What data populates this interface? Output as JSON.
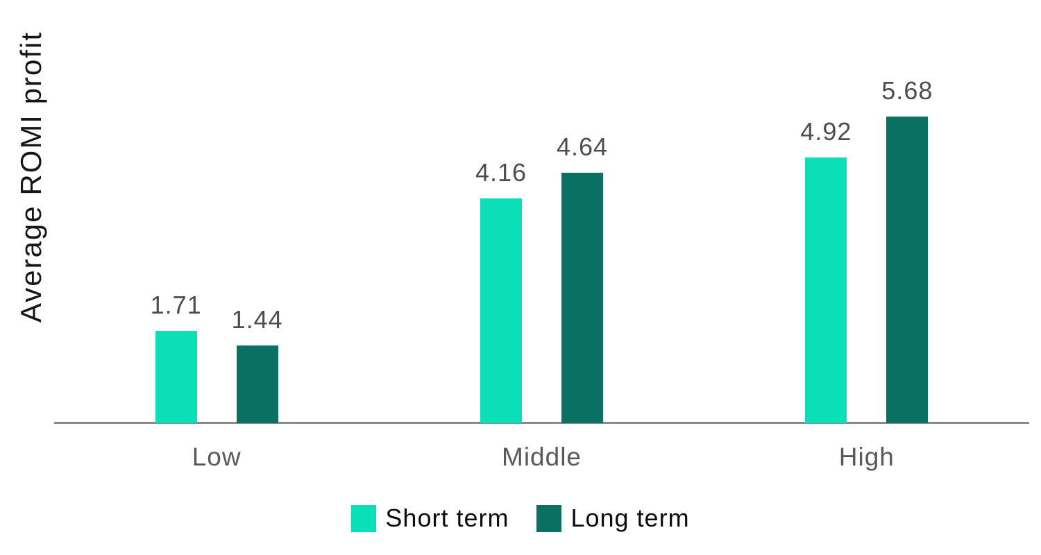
{
  "chart_data": {
    "type": "bar",
    "title": "",
    "ylabel": "Average ROMI profit",
    "xlabel": "",
    "categories": [
      "Low",
      "Middle",
      "High"
    ],
    "series": [
      {
        "name": "Short term",
        "color": "#0bdfb8",
        "values": [
          1.71,
          4.16,
          4.92
        ]
      },
      {
        "name": "Long term",
        "color": "#0a7061",
        "values": [
          1.44,
          4.64,
          5.68
        ]
      }
    ],
    "data_labels": true,
    "value_decimals": 2,
    "grid": false,
    "y_axis_visible": false,
    "legend_position": "bottom",
    "ylim": [
      0,
      7
    ]
  },
  "colors": {
    "background": "#ffffff",
    "axis_line": "#8a8a8a",
    "value_label": "#4d4d4d",
    "category_label": "#595959",
    "legend_text": "#0d0d0d",
    "y_label": "#161616"
  }
}
